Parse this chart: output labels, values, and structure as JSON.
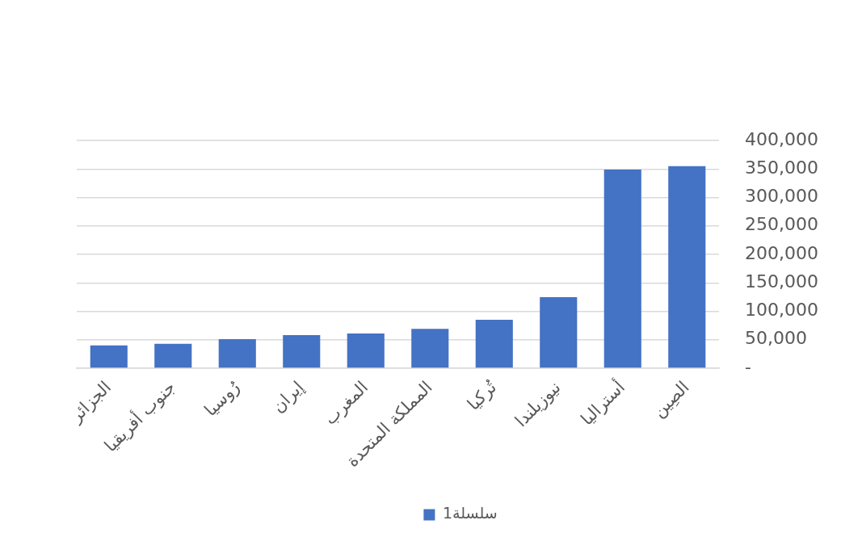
{
  "chart_data": {
    "type": "bar",
    "categories": [
      "الجزائر",
      "جنوب أفريقيا",
      "رُوسيا",
      "إيران",
      "المغرب",
      "المملكة المتحدة",
      "تُركيا",
      "نيوزيلندا",
      "أستراليا",
      "الصِين"
    ],
    "series": [
      {
        "name": "سلسلة1",
        "color": "#4472c4",
        "values": [
          40000,
          43000,
          51000,
          58000,
          61000,
          69000,
          85000,
          125000,
          349000,
          355000
        ]
      }
    ],
    "ylim": [
      0,
      400000
    ],
    "yticks": [
      {
        "value": 0,
        "label": "-"
      },
      {
        "value": 50000,
        "label": "50,000"
      },
      {
        "value": 100000,
        "label": "100,000"
      },
      {
        "value": 150000,
        "label": "150,000"
      },
      {
        "value": 200000,
        "label": "200,000"
      },
      {
        "value": 250000,
        "label": "250,000"
      },
      {
        "value": 300000,
        "label": "300,000"
      },
      {
        "value": 350000,
        "label": "350,000"
      },
      {
        "value": 400000,
        "label": "400,000"
      }
    ],
    "grid": "y",
    "legend": "bottom"
  }
}
